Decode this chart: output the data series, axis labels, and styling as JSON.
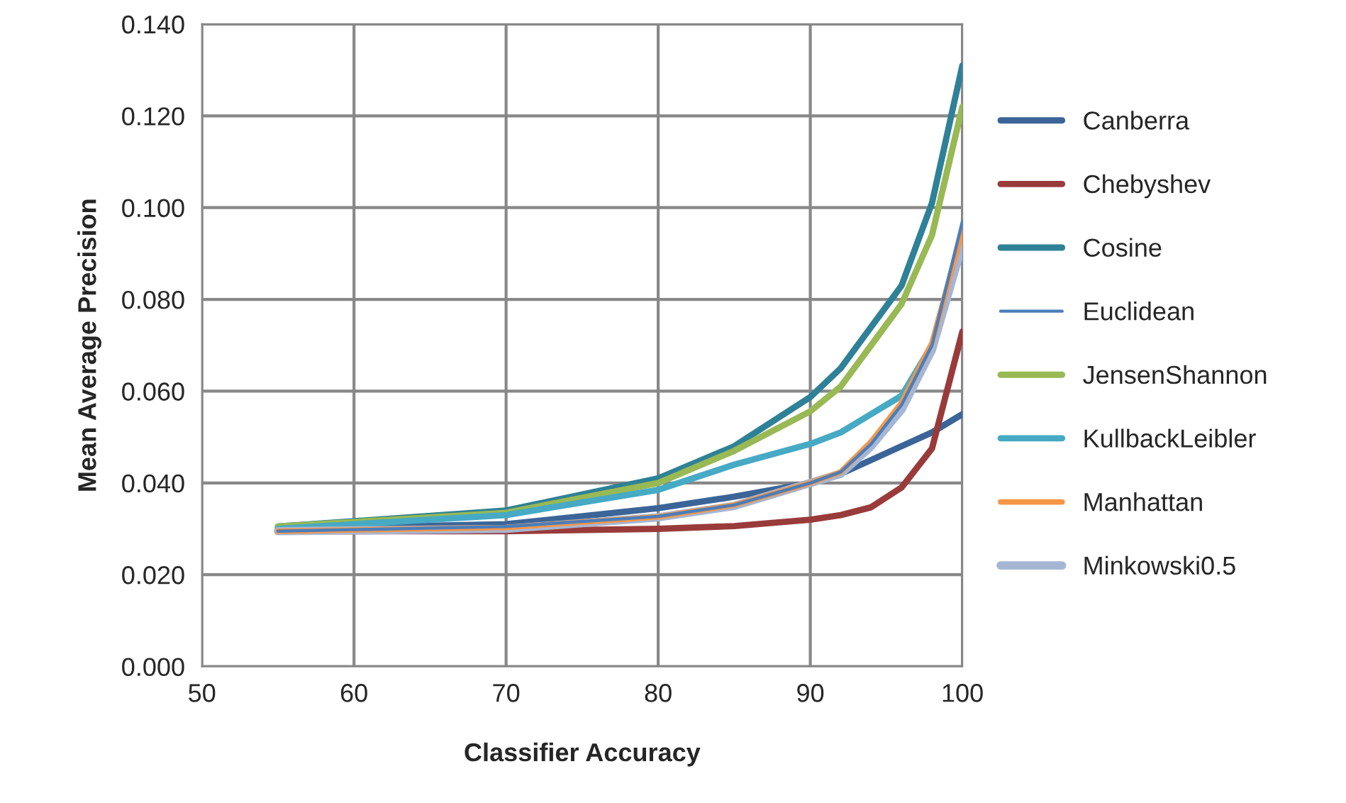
{
  "chart_data": {
    "type": "line",
    "xlabel": "Classifier Accuracy",
    "ylabel": "Mean Average Precision",
    "x": [
      55,
      70,
      80,
      85,
      90,
      92,
      94,
      96,
      98,
      100
    ],
    "series": [
      {
        "name": "Canberra",
        "color": "#3b6598",
        "values": [
          0.03,
          0.031,
          0.0345,
          0.037,
          0.04,
          0.042,
          0.045,
          0.048,
          0.051,
          0.055
        ]
      },
      {
        "name": "Chebyshev",
        "color": "#993b3a",
        "values": [
          0.0295,
          0.0295,
          0.03,
          0.0306,
          0.032,
          0.033,
          0.0347,
          0.039,
          0.0475,
          0.073
        ]
      },
      {
        "name": "Cosine",
        "color": "#2e8197",
        "values": [
          0.0305,
          0.034,
          0.041,
          0.048,
          0.0587,
          0.065,
          0.074,
          0.083,
          0.101,
          0.131
        ]
      },
      {
        "name": "Euclidean",
        "color": "#4a7ebb",
        "values": [
          0.0295,
          0.0305,
          0.0327,
          0.0352,
          0.04,
          0.0424,
          0.0485,
          0.057,
          0.07,
          0.097
        ]
      },
      {
        "name": "JensenShannon",
        "color": "#98b954",
        "values": [
          0.0305,
          0.0335,
          0.04,
          0.047,
          0.0556,
          0.061,
          0.07,
          0.079,
          0.094,
          0.122
        ]
      },
      {
        "name": "KullbackLeibler",
        "color": "#46aac5",
        "values": [
          0.03,
          0.033,
          0.0385,
          0.044,
          0.0485,
          0.051,
          0.055,
          0.059,
          0.07,
          0.093
        ]
      },
      {
        "name": "Manhattan",
        "color": "#f79646",
        "values": [
          0.0295,
          0.0303,
          0.0326,
          0.0352,
          0.04,
          0.0424,
          0.049,
          0.0575,
          0.0705,
          0.095
        ]
      },
      {
        "name": "Minkowski0.5",
        "color": "#a5b6d4",
        "values": [
          0.0295,
          0.03,
          0.0325,
          0.035,
          0.04,
          0.042,
          0.048,
          0.056,
          0.069,
          0.092
        ]
      }
    ],
    "xlim": [
      50,
      100
    ],
    "xticks": [
      50,
      60,
      70,
      80,
      90,
      100
    ],
    "ylim": [
      0,
      0.14
    ],
    "yticks": [
      {
        "value": 0,
        "label": "0.000"
      },
      {
        "value": 0.02,
        "label": "0.020"
      },
      {
        "value": 0.04,
        "label": "0.040"
      },
      {
        "value": 0.06,
        "label": "0.060"
      },
      {
        "value": 0.08,
        "label": "0.080"
      },
      {
        "value": 0.1,
        "label": "0.100"
      },
      {
        "value": 0.12,
        "label": "0.120"
      },
      {
        "value": 0.14,
        "label": "0.140"
      }
    ],
    "grid": true,
    "legend": "right",
    "marker": "none",
    "line_style": "solid"
  }
}
